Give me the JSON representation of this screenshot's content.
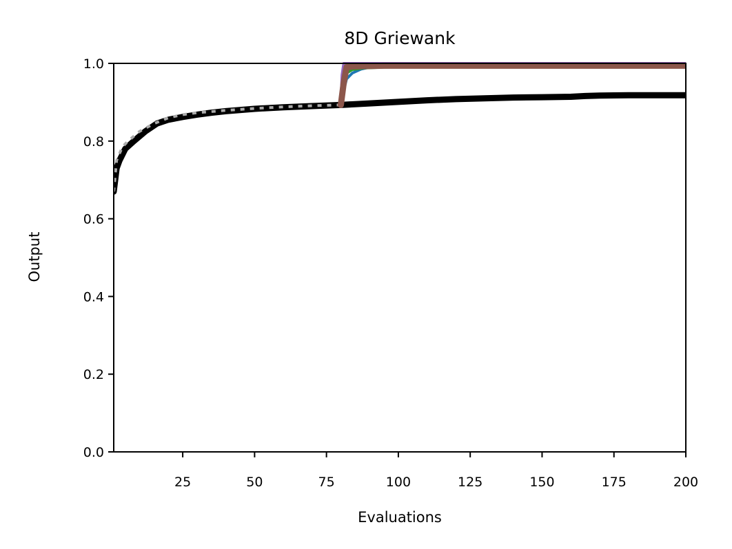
{
  "chart_data": {
    "type": "line",
    "title": "8D Griewank",
    "xlabel": "Evaluations",
    "ylabel": "Output",
    "xlim": [
      1,
      200
    ],
    "ylim": [
      0.0,
      1.0
    ],
    "xticks": [
      25,
      50,
      75,
      100,
      125,
      150,
      175,
      200
    ],
    "yticks": [
      0.0,
      0.2,
      0.4,
      0.6,
      0.8,
      1.0
    ],
    "ytick_labels": [
      "0.0",
      "0.2",
      "0.4",
      "0.6",
      "0.8",
      "1.0"
    ],
    "grid": false,
    "legend": "none",
    "series": [
      {
        "color": "#000000",
        "style": "solid",
        "width": "thick",
        "x": [
          1,
          2,
          3,
          5,
          8,
          12,
          16,
          20,
          25,
          30,
          35,
          40,
          50,
          60,
          70,
          80,
          90,
          100,
          110,
          120,
          130,
          140,
          150,
          160,
          165,
          170,
          180,
          190,
          200
        ],
        "y": [
          0.67,
          0.73,
          0.75,
          0.78,
          0.8,
          0.825,
          0.845,
          0.855,
          0.862,
          0.868,
          0.873,
          0.877,
          0.883,
          0.887,
          0.89,
          0.893,
          0.897,
          0.901,
          0.905,
          0.908,
          0.91,
          0.912,
          0.913,
          0.914,
          0.916,
          0.917,
          0.918,
          0.918,
          0.918
        ]
      },
      {
        "color": "#aaaaaa",
        "style": "dotted",
        "width": "medium",
        "x": [
          1,
          2,
          4,
          6,
          10,
          15,
          20,
          25,
          30,
          40,
          50,
          60,
          70,
          80
        ],
        "y": [
          0.67,
          0.75,
          0.785,
          0.8,
          0.825,
          0.845,
          0.86,
          0.868,
          0.873,
          0.879,
          0.884,
          0.888,
          0.891,
          0.893
        ]
      },
      {
        "color": "#1f77b4",
        "style": "solid",
        "width": "medium",
        "x": [
          80,
          81,
          82,
          84,
          87,
          90,
          95,
          100,
          120,
          150,
          200
        ],
        "y": [
          0.893,
          0.93,
          0.96,
          0.975,
          0.985,
          0.99,
          0.992,
          0.993,
          0.994,
          0.994,
          0.994
        ]
      },
      {
        "color": "#2ca02c",
        "style": "solid",
        "width": "medium",
        "x": [
          80,
          81,
          82,
          84,
          88,
          95,
          110,
          130,
          160,
          200
        ],
        "y": [
          0.893,
          0.95,
          0.975,
          0.984,
          0.988,
          0.99,
          0.991,
          0.992,
          0.993,
          0.993
        ]
      },
      {
        "color": "#9467bd",
        "style": "solid",
        "width": "medium",
        "x": [
          80,
          80.4,
          81,
          81.5,
          83,
          90,
          100,
          150,
          200
        ],
        "y": [
          0.9,
          0.97,
          1.0,
          1.0,
          1.0,
          1.0,
          1.0,
          1.0,
          1.0
        ]
      },
      {
        "color": "#8c564b",
        "style": "solid",
        "width": "thick",
        "x": [
          80,
          81,
          82,
          84,
          88,
          95,
          100,
          130,
          160,
          200
        ],
        "y": [
          0.893,
          0.95,
          0.99,
          0.992,
          0.993,
          0.994,
          0.994,
          0.994,
          0.994,
          0.994
        ]
      }
    ]
  }
}
